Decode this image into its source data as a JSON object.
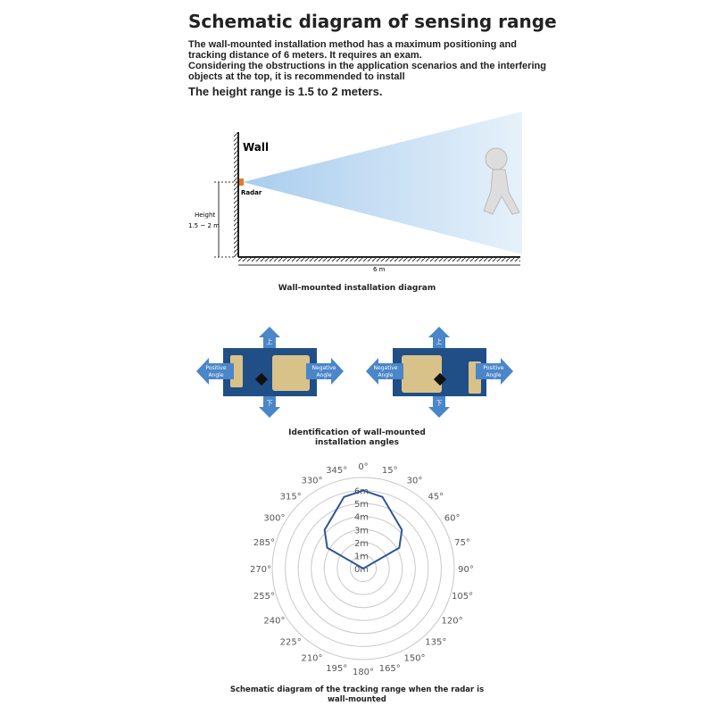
{
  "header": {
    "title": "Schematic diagram of sensing range",
    "intro_lines": [
      "The wall-mounted installation method has a maximum positioning and",
      "tracking distance of 6 meters. It requires an exam.",
      "Considering the obstructions in the application scenarios and the interfering",
      "objects at the top, it is recommended to install"
    ],
    "height_line": "The height range is 1.5 to 2 meters."
  },
  "install_diagram": {
    "wall_label": "Wall",
    "radar_label": "Radar",
    "height_label": "Height",
    "height_value": "1.5 ~ 2 m",
    "distance_label": "6 m",
    "caption": "Wall-mounted installation diagram",
    "radar_color": "#e07b2a",
    "beam_color": "#cfe4f5"
  },
  "angles_diagram": {
    "up_label": "上",
    "down_label": "下",
    "left_board": {
      "left": "Positive Angle",
      "right": "Negative Angle"
    },
    "right_board": {
      "left": "Negative Angle",
      "right": "Positive Angle"
    },
    "caption_lines": [
      "Identification of wall-mounted",
      "installation angles"
    ],
    "arrow_color": "#4a86c8",
    "board_color": "#1f4f86",
    "pad_color": "#d9c28a"
  },
  "chart_data": {
    "type": "polar",
    "angle_ticks": [
      "0°",
      "15°",
      "30°",
      "45°",
      "60°",
      "75°",
      "90°",
      "105°",
      "120°",
      "135°",
      "150°",
      "165°",
      "180°",
      "195°",
      "210°",
      "225°",
      "240°",
      "255°",
      "270°",
      "285°",
      "300°",
      "315°",
      "330°",
      "345°"
    ],
    "radial_ticks": [
      "0m",
      "1m",
      "2m",
      "3m",
      "4m",
      "5m",
      "6m"
    ],
    "rlim": [
      0,
      7
    ],
    "series": [
      {
        "angles": [
          0,
          15,
          45,
          60,
          90,
          270,
          300,
          315,
          345
        ],
        "r": [
          6,
          5.7,
          4.2,
          3.2,
          0,
          0,
          3.2,
          4.2,
          5.7
        ]
      }
    ],
    "line_color": "#2f5597",
    "caption_lines": [
      "Schematic diagram of the tracking range when the radar is",
      "wall-mounted"
    ]
  }
}
